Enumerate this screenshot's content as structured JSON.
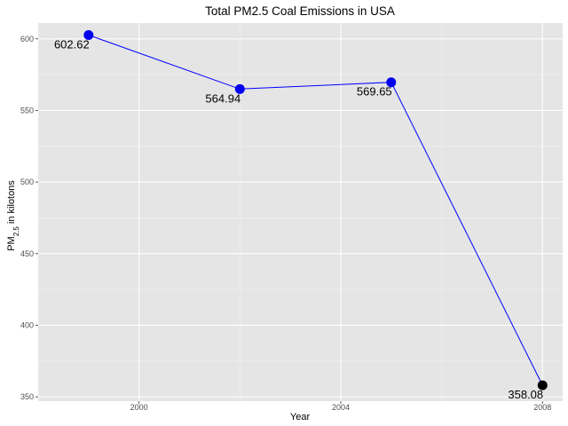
{
  "chart_data": {
    "type": "line",
    "title": "Total PM2.5 Coal Emissions in USA",
    "xlabel": "Year",
    "ylabel": {
      "main": "PM",
      "subscript": "2.5",
      "suffix": " in kilotons"
    },
    "xlim": [
      1998,
      2008.4
    ],
    "ylim": [
      347,
      611
    ],
    "x_ticks": [
      2000,
      2004,
      2008
    ],
    "x_tick_labels": [
      "2000",
      "2004",
      "2008"
    ],
    "x_minor_ticks": [
      1998,
      2002,
      2006
    ],
    "y_ticks": [
      350,
      400,
      450,
      500,
      550,
      600
    ],
    "y_tick_labels": [
      "350",
      "400",
      "450",
      "500",
      "550",
      "600"
    ],
    "y_minor_ticks": [
      375,
      425,
      475,
      525,
      575
    ],
    "grid": true,
    "series": [
      {
        "x": [
          1999,
          2002,
          2005,
          2008
        ],
        "y": [
          602.62,
          564.94,
          569.65,
          358.08
        ],
        "labels": [
          "602.62",
          "564.94",
          "569.65",
          "358.08"
        ],
        "line_color": "#0000ff",
        "point_colors": [
          "#0000ee",
          "#0000ee",
          "#0000ee",
          "#000000"
        ]
      }
    ],
    "colors": {
      "panel_background": "#e5e5e5",
      "grid_major": "#ffffff",
      "grid_minor": "#f2f2f2"
    }
  }
}
